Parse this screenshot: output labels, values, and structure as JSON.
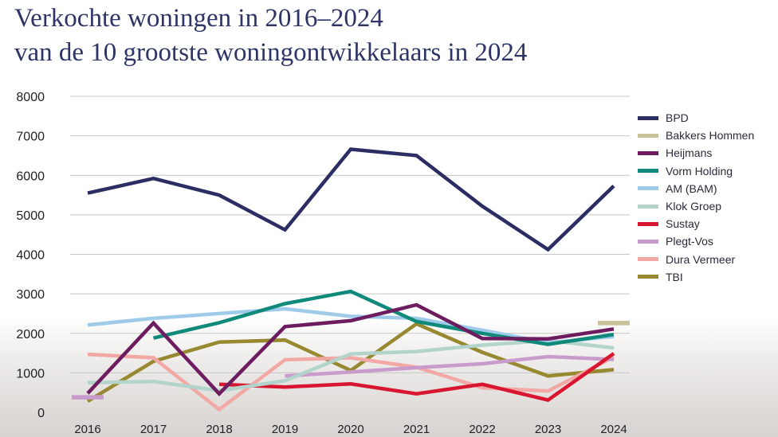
{
  "title_line1": "Verkochte woningen in 2016–2024",
  "title_line2": "van de 10 grootste woningontwikkelaars in 2024",
  "chart_data": {
    "type": "line",
    "x": [
      2016,
      2017,
      2018,
      2019,
      2020,
      2021,
      2022,
      2023,
      2024
    ],
    "ylim": [
      0,
      8000
    ],
    "yticks": [
      0,
      1000,
      2000,
      3000,
      4000,
      5000,
      6000,
      7000,
      8000
    ],
    "grid": true,
    "legend_position": "right",
    "series": [
      {
        "name": "BPD",
        "color": "#2b2d63",
        "values": [
          5550,
          5920,
          5500,
          4620,
          6660,
          6500,
          5220,
          4120,
          5730
        ]
      },
      {
        "name": "Bakkers Hommen",
        "color": "#c8c19a",
        "values": [
          null,
          null,
          null,
          null,
          null,
          null,
          null,
          null,
          2260
        ]
      },
      {
        "name": "Heijmans",
        "color": "#6d1d5f",
        "values": [
          480,
          2260,
          470,
          2170,
          2320,
          2720,
          1870,
          1860,
          2110
        ]
      },
      {
        "name": "Vorm Holding",
        "color": "#0f8a7a",
        "values": [
          null,
          1880,
          2270,
          2750,
          3060,
          2300,
          2000,
          1720,
          1970
        ]
      },
      {
        "name": "AM (BAM)",
        "color": "#9fcbea",
        "values": [
          2210,
          2380,
          2500,
          2620,
          2430,
          2380,
          2080,
          1760,
          1920
        ]
      },
      {
        "name": "Klok Groep",
        "color": "#b3d4cb",
        "values": [
          750,
          780,
          550,
          800,
          1480,
          1540,
          1700,
          1820,
          1630
        ]
      },
      {
        "name": "Sustay",
        "color": "#d9162f",
        "values": [
          null,
          null,
          710,
          640,
          720,
          470,
          710,
          310,
          1490
        ]
      },
      {
        "name": "Plegt-Vos",
        "color": "#c99bcd",
        "values": [
          380,
          null,
          null,
          920,
          1020,
          1130,
          1230,
          1410,
          1340
        ]
      },
      {
        "name": "Dura Vermeer",
        "color": "#f2a8a4",
        "values": [
          1470,
          1380,
          70,
          1330,
          1380,
          1140,
          620,
          540,
          1400
        ]
      },
      {
        "name": "TBI",
        "color": "#968930",
        "values": [
          280,
          1290,
          1780,
          1830,
          1060,
          2240,
          1520,
          920,
          1080
        ]
      }
    ]
  }
}
